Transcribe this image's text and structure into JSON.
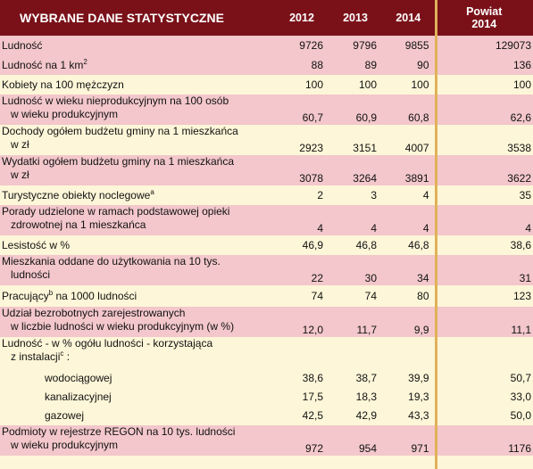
{
  "header": {
    "title": "WYBRANE DANE STATYSTYCZNE",
    "years": [
      "2012",
      "2013",
      "2014"
    ],
    "powiat_line1": "Powiat",
    "powiat_line2": "2014"
  },
  "rows": [
    {
      "line1": "Ludność",
      "v2012": "9726",
      "v2013": "9796",
      "v2014": "9855",
      "powiat": "129073"
    },
    {
      "line1": "Ludność  na 1 km",
      "sup": "2",
      "v2012": "88",
      "v2013": "89",
      "v2014": "90",
      "powiat": "136"
    },
    {
      "line1": "Kobiety na 100 mężczyzn",
      "v2012": "100",
      "v2013": "100",
      "v2014": "100",
      "powiat": "100"
    },
    {
      "line1": "Ludność w wieku nieprodukcyjnym na 100 osób",
      "line2": "w wieku produkcyjnym",
      "v2012": "60,7",
      "v2013": "60,9",
      "v2014": "60,8",
      "powiat": "62,6"
    },
    {
      "line1": "Dochody ogółem budżetu gminy na 1 mieszkańca",
      "line2": "w zł",
      "v2012": "2923",
      "v2013": "3151",
      "v2014": "4007",
      "powiat": "3538"
    },
    {
      "line1": "Wydatki ogółem budżetu gminy na 1 mieszkańca",
      "line2": "w zł",
      "v2012": "3078",
      "v2013": "3264",
      "v2014": "3891",
      "powiat": "3622"
    },
    {
      "line1": "Turystyczne obiekty noclegowe",
      "sup": "a",
      "v2012": "2",
      "v2013": "3",
      "v2014": "4",
      "powiat": "35"
    },
    {
      "line1": "Porady udzielone w ramach podstawowej opieki",
      "line2": "zdrowotnej na 1 mieszkańca",
      "v2012": "4",
      "v2013": "4",
      "v2014": "4",
      "powiat": "4"
    },
    {
      "line1": "Lesistość w %",
      "v2012": "46,9",
      "v2013": "46,8",
      "v2014": "46,8",
      "powiat": "38,6"
    },
    {
      "line1": "Mieszkania oddane do użytkowania na 10 tys.",
      "line2": "ludności",
      "v2012": "22",
      "v2013": "30",
      "v2014": "34",
      "powiat": "31"
    },
    {
      "line1": "Pracujący",
      "sup": "b",
      "line1b": "  na 1000 ludności",
      "v2012": "74",
      "v2013": "74",
      "v2014": "80",
      "powiat": "123"
    },
    {
      "line1": "Udział bezrobotnych zarejestrowanych",
      "line2": "w liczbie ludności w wieku produkcyjnym (w %)",
      "v2012": "12,0",
      "v2013": "11,7",
      "v2014": "9,9",
      "powiat": "11,1"
    },
    {
      "line1": "Ludność - w % ogółu ludności - korzystająca",
      "line2": "z instalacji",
      "sup2": "c",
      "line2b": " :"
    },
    {
      "sub": "wodociągowej",
      "v2012": "38,6",
      "v2013": "38,7",
      "v2014": "39,9",
      "powiat": "50,7"
    },
    {
      "sub": "kanalizacyjnej",
      "v2012": "17,5",
      "v2013": "18,3",
      "v2014": "19,3",
      "powiat": "33,0"
    },
    {
      "sub": "gazowej",
      "v2012": "42,5",
      "v2013": "42,9",
      "v2014": "43,3",
      "powiat": "50,0"
    },
    {
      "line1": "Podmioty w rejestrze REGON na 10 tys. ludności",
      "line2": "w wieku produkcyjnym",
      "v2012": "972",
      "v2013": "954",
      "v2014": "971",
      "powiat": "1176"
    }
  ]
}
